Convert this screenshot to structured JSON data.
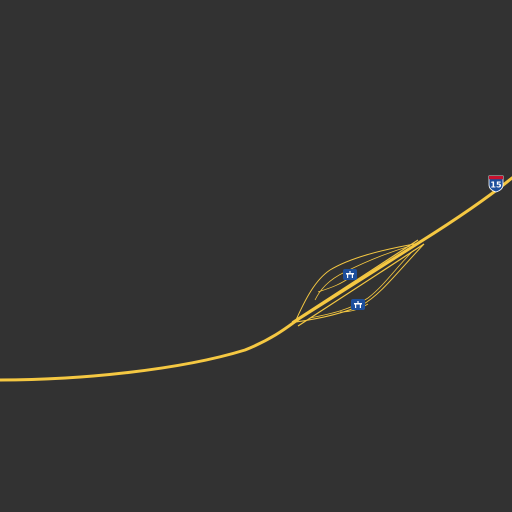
{
  "colors": {
    "background": "#323232",
    "highway": "#f5c842",
    "highway_outline": "#d9a92e",
    "shield_blue": "#1d4f9c",
    "shield_red": "#c8102e"
  },
  "map": {
    "highway_shield": {
      "icon": "interstate-shield-icon",
      "route_number": "15"
    },
    "rest_area_icons": [
      {
        "icon": "rest-area-icon"
      },
      {
        "icon": "rest-area-icon"
      }
    ]
  }
}
